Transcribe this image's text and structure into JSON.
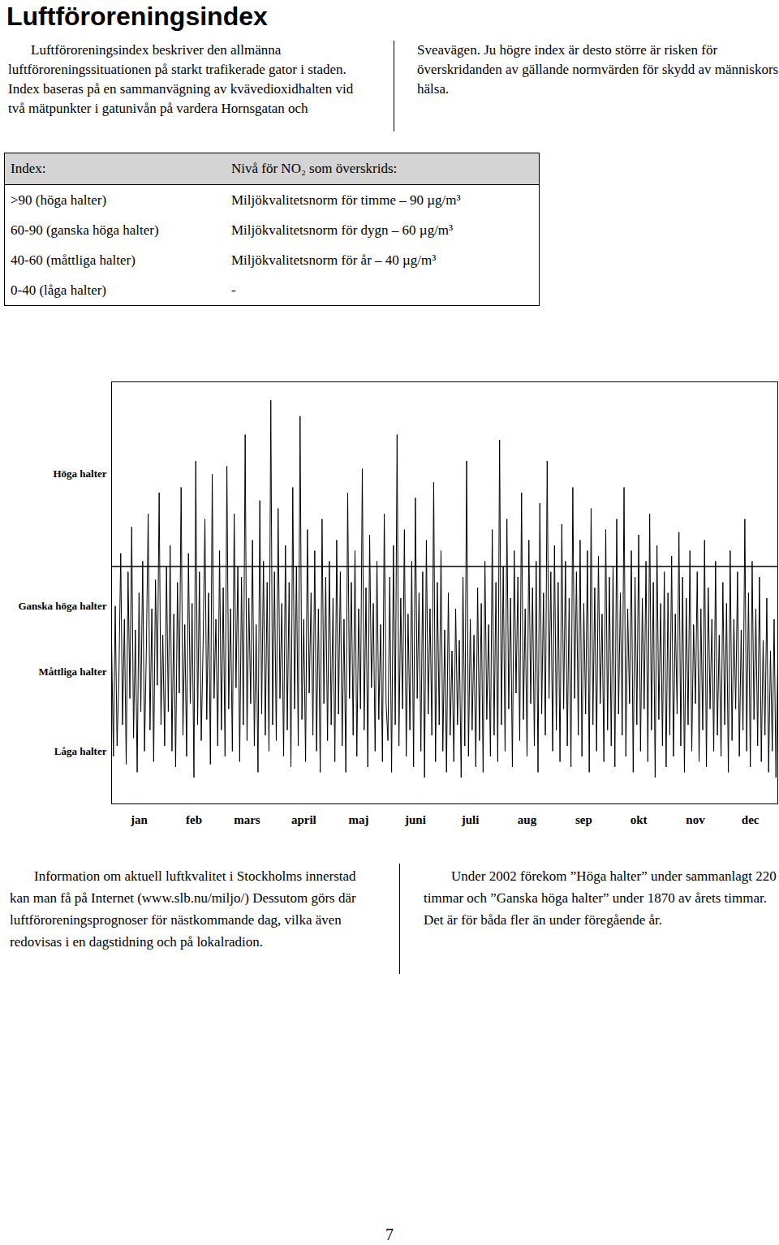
{
  "title": "Luftföroreningsindex",
  "intro": "Luftföroreningsindex beskriver den allmänna luftföroreningssituationen på starkt trafikerade gator i staden. Index baseras på en sammanvägning av kvävedioxidhalten vid två mätpunkter i gatunivån på vardera Hornsgatan och Sveavägen. Ju högre index är desto större är risken för överskridanden av gällande normvärden för skydd av människors hälsa.",
  "table": {
    "header": [
      "Index:",
      "Nivå för NO₂ som överskrids:"
    ],
    "rows": [
      [
        ">90 (höga halter)",
        "Miljökvalitetsnorm för timme – 90 µg/m³"
      ],
      [
        "60-90 (ganska höga halter)",
        "Miljökvalitetsnorm för dygn – 60 µg/m³"
      ],
      [
        "40-60 (måttliga halter)",
        "Miljökvalitetsnorm för år – 40 µg/m³"
      ],
      [
        "0-40 (låga halter)",
        "-"
      ]
    ]
  },
  "chart_data": {
    "type": "line",
    "color": "#000000",
    "grid": false,
    "categories": [
      "jan",
      "feb",
      "mars",
      "april",
      "maj",
      "juni",
      "juli",
      "aug",
      "sep",
      "okt",
      "nov",
      "dec"
    ],
    "values": [
      [
        62,
        18,
        75,
        22,
        48,
        95,
        30,
        70,
        15,
        88,
        40,
        105,
        25,
        66,
        12,
        80,
        35,
        92,
        20,
        58,
        110,
        28,
        74,
        16,
        85,
        45,
        118,
        30,
        64,
        22,
        90
      ],
      [
        35,
        98,
        20,
        72,
        14,
        84,
        42,
        120,
        26,
        68,
        18,
        95,
        38,
        76,
        10,
        130,
        30,
        88,
        24,
        60,
        108,
        32,
        80,
        15,
        125,
        40,
        70,
        22
      ],
      [
        96,
        28,
        82,
        18,
        128,
        36,
        74,
        20,
        110,
        44,
        90,
        16,
        86,
        30,
        140,
        24,
        78,
        38,
        100,
        22,
        68,
        12,
        115,
        34,
        92,
        26,
        84,
        20,
        153,
        30,
        88
      ],
      [
        24,
        112,
        40,
        76,
        18,
        98,
        28,
        84,
        14,
        120,
        36,
        90,
        22,
        147,
        32,
        70,
        16,
        104,
        42,
        80,
        26,
        96,
        20,
        74,
        12,
        108,
        38,
        86,
        24,
        92
      ],
      [
        30,
        78,
        16,
        100,
        34,
        88,
        22,
        70,
        12,
        118,
        40,
        84,
        26,
        96,
        18,
        74,
        36,
        127,
        28,
        82,
        14,
        102,
        44,
        76,
        20,
        92,
        32,
        68,
        16,
        110,
        38
      ],
      [
        24,
        86,
        12,
        98,
        30,
        140,
        22,
        78,
        36,
        104,
        18,
        72,
        28,
        92,
        14,
        116,
        40,
        80,
        20,
        88,
        10,
        100,
        34,
        74,
        26,
        122,
        16,
        84,
        30,
        96
      ],
      [
        20,
        66,
        12,
        80,
        26,
        58,
        16,
        74,
        30,
        62,
        10,
        86,
        22,
        130,
        18,
        70,
        28,
        64,
        14,
        82,
        24,
        76,
        12,
        92,
        32,
        68,
        18,
        104,
        26,
        84,
        16
      ],
      [
        138,
        30,
        90,
        20,
        108,
        36,
        78,
        14,
        96,
        42,
        86,
        24,
        118,
        32,
        74,
        18,
        100,
        38,
        82,
        22,
        92,
        12,
        114,
        34,
        80,
        26,
        130,
        40,
        88,
        20,
        98
      ],
      [
        28,
        84,
        16,
        106,
        36,
        92,
        22,
        78,
        14,
        120,
        40,
        88,
        26,
        100,
        18,
        76,
        34,
        96,
        12,
        112,
        30,
        82,
        20,
        94,
        38,
        72,
        16,
        104,
        28,
        86
      ],
      [
        22,
        90,
        14,
        108,
        34,
        80,
        26,
        120,
        18,
        74,
        38,
        96,
        12,
        86,
        30,
        102,
        20,
        78,
        36,
        92,
        16,
        110,
        28,
        84,
        10,
        98,
        32,
        76,
        22,
        88,
        14
      ],
      [
        80,
        26,
        94,
        18,
        72,
        34,
        103,
        22,
        86,
        12,
        78,
        30,
        96,
        20,
        68,
        38,
        88,
        16,
        74,
        28,
        100,
        14,
        82,
        36,
        70,
        20,
        92,
        26,
        64,
        18
      ],
      [
        84,
        30,
        76,
        12,
        96,
        24,
        70,
        36,
        88,
        18,
        66,
        28,
        108,
        20,
        80,
        14,
        92,
        32,
        74,
        22,
        86,
        16,
        62,
        26,
        78,
        12,
        58,
        20,
        70,
        10,
        54
      ]
    ],
    "ylim": [
      0,
      160
    ],
    "yticks": [
      {
        "value": 20,
        "label": "Låga halter"
      },
      {
        "value": 50,
        "label": "Måttliga halter"
      },
      {
        "value": 75,
        "label": "Ganska höga halter"
      },
      {
        "value": 125,
        "label": "Höga halter"
      }
    ],
    "thresholds": [
      90
    ]
  },
  "footer": {
    "left": "Information om aktuell luftkvalitet i Stockholms innerstad kan man få på Internet (www.slb.nu/miljo/) Dessutom görs där luftföroreningsprognoser för nästkommande dag, vilka även redovisas i en dagstidning och på lokalradion.",
    "right": "Under 2002 förekom ”Höga halter” under sammanlagt 220 timmar och ”Ganska höga halter” under 1870 av årets timmar. Det är för båda fler än under föregående år."
  },
  "page_number": "7"
}
